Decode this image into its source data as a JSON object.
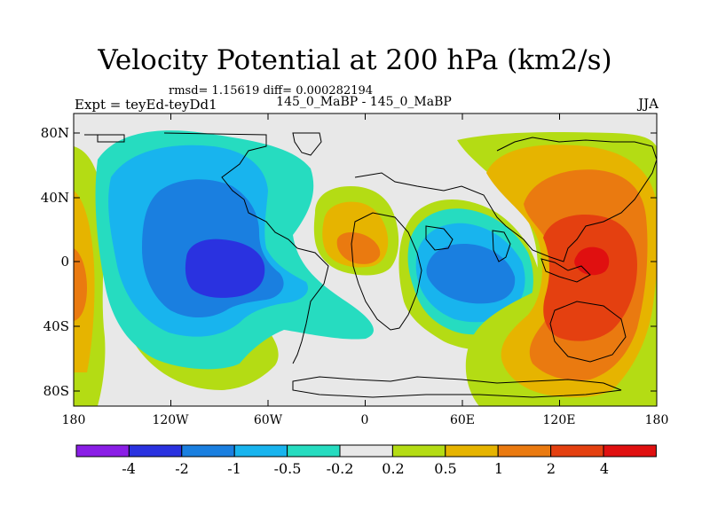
{
  "title": "Velocity Potential at 200 hPa (km2/s)",
  "stats": "rmsd= 1.15619 diff= 0.000282194",
  "experiment": "Expt = teyEd-teyDd1",
  "center_label": "145_0_MaBP - 145_0_MaBP",
  "season": "JJA",
  "lat_ticks": [
    "80N",
    "40N",
    "0",
    "40S",
    "80S"
  ],
  "lon_ticks": [
    "180",
    "120W",
    "60W",
    "0",
    "60E",
    "120E",
    "180"
  ],
  "colorbar": {
    "labels": [
      "-4",
      "-2",
      "-1",
      "-0.5",
      "-0.2",
      "0.2",
      "0.5",
      "1",
      "2",
      "4"
    ],
    "colors": [
      "#8a1ee6",
      "#2a32e0",
      "#1a7fe0",
      "#18b4ee",
      "#26dcc0",
      "#e8e8e8",
      "#b4dc14",
      "#e6b400",
      "#ea7a10",
      "#e44010",
      "#e01010"
    ]
  },
  "colors": {
    "background": "#e8e8e8",
    "frame": "#000000"
  }
}
